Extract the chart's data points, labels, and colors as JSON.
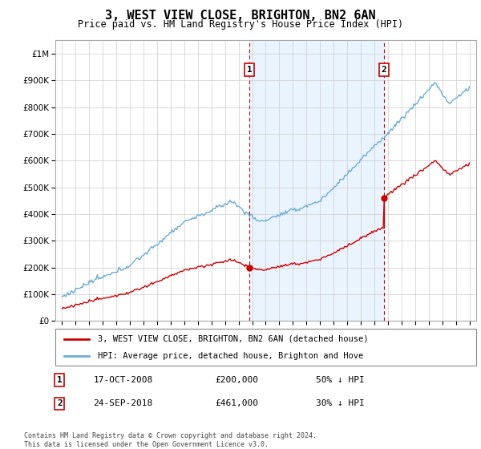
{
  "title": "3, WEST VIEW CLOSE, BRIGHTON, BN2 6AN",
  "subtitle": "Price paid vs. HM Land Registry's House Price Index (HPI)",
  "legend_line1": "3, WEST VIEW CLOSE, BRIGHTON, BN2 6AN (detached house)",
  "legend_line2": "HPI: Average price, detached house, Brighton and Hove",
  "footnote": "Contains HM Land Registry data © Crown copyright and database right 2024.\nThis data is licensed under the Open Government Licence v3.0.",
  "transaction1_date": "17-OCT-2008",
  "transaction1_price": "£200,000",
  "transaction1_pct": "50% ↓ HPI",
  "transaction2_date": "24-SEP-2018",
  "transaction2_price": "£461,000",
  "transaction2_pct": "30% ↓ HPI",
  "hpi_color": "#6baed6",
  "price_color": "#cc0000",
  "marker_color": "#cc0000",
  "shade_color": "#ddeeff",
  "vline_color": "#cc0000",
  "ylim": [
    0,
    1050000
  ],
  "xlim_start": 1994.5,
  "xlim_end": 2025.5,
  "transaction1_year": 2008.79,
  "transaction2_year": 2018.72,
  "background_color": "#ffffff",
  "grid_color": "#cccccc",
  "transaction1_value": 200000,
  "transaction2_value": 461000
}
